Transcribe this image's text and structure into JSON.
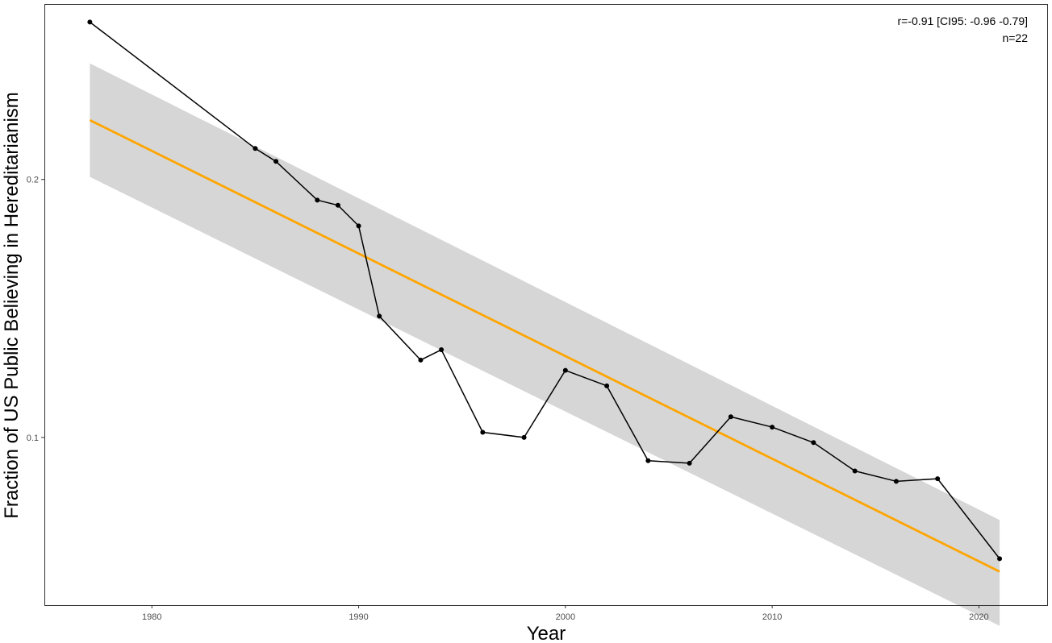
{
  "chart_data": {
    "type": "line",
    "title": "",
    "xlabel": "Year",
    "ylabel": "Fraction of US Public Believing in Hereditarianism",
    "x_ticks": [
      1980,
      1990,
      2000,
      2010,
      2020
    ],
    "y_ticks": [
      0.1,
      0.2
    ],
    "xlim": [
      1974.8,
      2023.3
    ],
    "ylim": [
      0.035,
      0.268
    ],
    "grid": false,
    "legend": "none",
    "series": [
      {
        "type": "line+points",
        "color": "#000000",
        "x": [
          1977,
          1985,
          1986,
          1988,
          1989,
          1990,
          1991,
          1993,
          1994,
          1996,
          1998,
          2000,
          2002,
          2004,
          2006,
          2008,
          2010,
          2012,
          2014,
          2016,
          2018,
          2021
        ],
        "y": [
          0.261,
          0.212,
          0.207,
          0.192,
          0.19,
          0.182,
          0.147,
          0.13,
          0.134,
          0.102,
          0.1,
          0.126,
          0.12,
          0.091,
          0.09,
          0.108,
          0.104,
          0.098,
          0.087,
          0.083,
          0.084,
          0.053
        ]
      },
      {
        "type": "fit",
        "color": "#FFA500",
        "x": [
          1977,
          2021
        ],
        "y": [
          0.223,
          0.048
        ]
      }
    ],
    "confidence_band": {
      "color": "#d6d6d6",
      "x": [
        1977,
        2021
      ],
      "lower": [
        0.201,
        0.027
      ],
      "upper": [
        0.245,
        0.068
      ]
    },
    "annotations": [
      "r=-0.91 [CI95: -0.96 -0.79]",
      "n=22"
    ]
  }
}
